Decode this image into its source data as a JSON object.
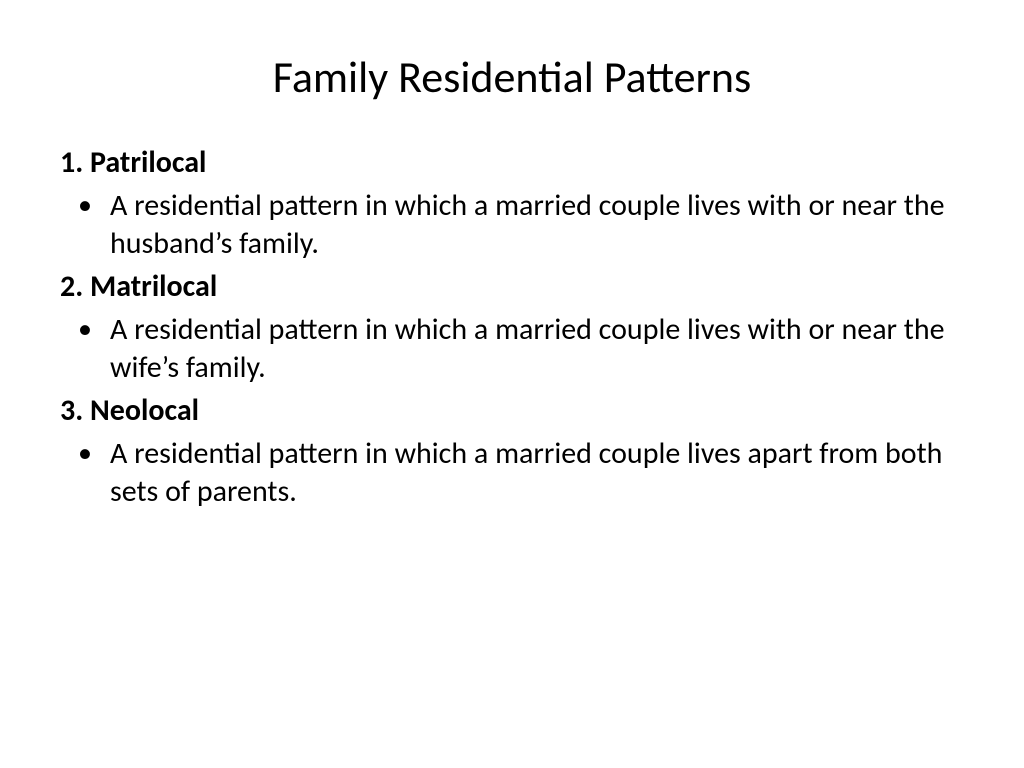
{
  "slide": {
    "title": "Family Residential Patterns",
    "background_color": "#ffffff",
    "text_color": "#000000",
    "title_fontsize": 44,
    "body_fontsize": 30,
    "sections": [
      {
        "header": "1. Patrilocal",
        "description": "A residential pattern in which a married couple lives with or near the husband’s family."
      },
      {
        "header": "2. Matrilocal",
        "description": "A residential pattern in which a married couple lives with or near the wife’s family."
      },
      {
        "header": "3. Neolocal",
        "description": "A residential pattern in which a married couple lives apart from both sets of parents."
      }
    ]
  }
}
